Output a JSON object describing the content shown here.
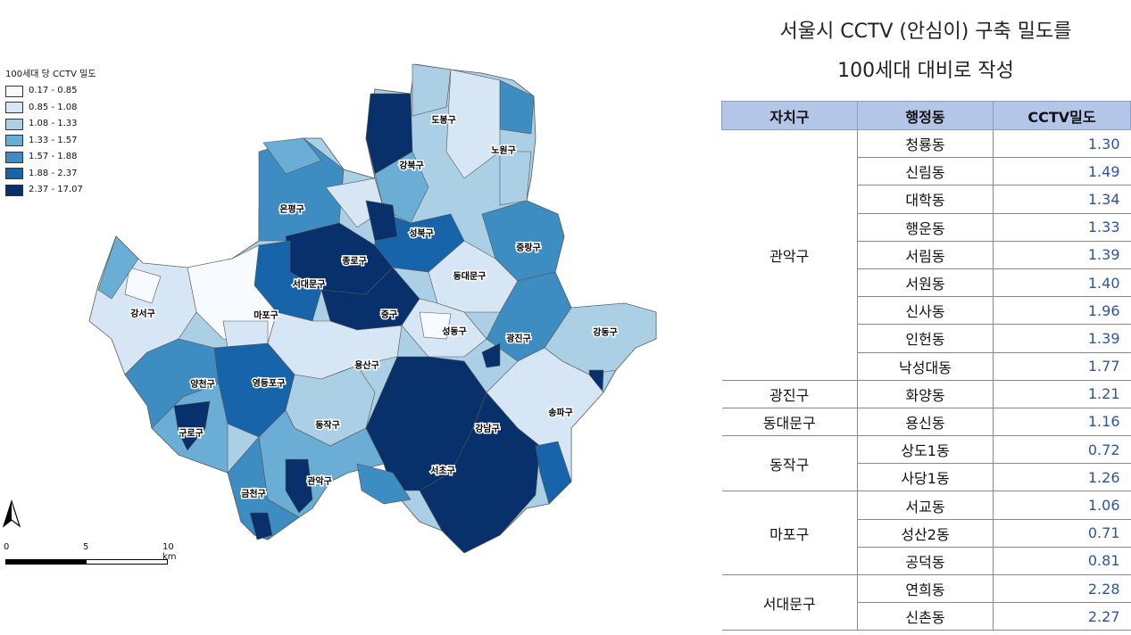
{
  "title": {
    "line1": "서울시 CCTV (안심이) 구축 밀도를",
    "line2": "100세대 대비로 작성"
  },
  "legend": {
    "title": "100세대 당 CCTV 밀도",
    "items": [
      {
        "label": "0.17 - 0.85",
        "color": "#f7fbff"
      },
      {
        "label": "0.85 - 1.08",
        "color": "#d6e6f4"
      },
      {
        "label": "1.08 - 1.33",
        "color": "#abcfe5"
      },
      {
        "label": "1.33 - 1.57",
        "color": "#6aaed6"
      },
      {
        "label": "1.57 - 1.88",
        "color": "#3d8dc3"
      },
      {
        "label": "1.88 - 2.37",
        "color": "#1764ab"
      },
      {
        "label": "2.37 - 17.07",
        "color": "#08306b"
      }
    ]
  },
  "map": {
    "district_labels": [
      "도봉구",
      "노원구",
      "강북구",
      "은평구",
      "성북구",
      "중랑구",
      "종로구",
      "서대문구",
      "동대문구",
      "강서구",
      "마포구",
      "중구",
      "성동구",
      "광진구",
      "강동구",
      "용산구",
      "양천구",
      "영등포구",
      "송파구",
      "동작구",
      "구로구",
      "강남구",
      "서초구",
      "관악구",
      "금천구"
    ]
  },
  "scale": {
    "t0": "0",
    "t1": "5",
    "t2": "10 km"
  },
  "table": {
    "headers": [
      "자치구",
      "행정동",
      "CCTV밀도"
    ],
    "groups": [
      {
        "gu": "관악구",
        "rows": [
          {
            "dong": "청룡동",
            "value": "1.30"
          },
          {
            "dong": "신림동",
            "value": "1.49"
          },
          {
            "dong": "대학동",
            "value": "1.34"
          },
          {
            "dong": "행운동",
            "value": "1.33"
          },
          {
            "dong": "서림동",
            "value": "1.39"
          },
          {
            "dong": "서원동",
            "value": "1.40"
          },
          {
            "dong": "신사동",
            "value": "1.96"
          },
          {
            "dong": "인헌동",
            "value": "1.39"
          },
          {
            "dong": "낙성대동",
            "value": "1.77"
          }
        ]
      },
      {
        "gu": "광진구",
        "rows": [
          {
            "dong": "화양동",
            "value": "1.21"
          }
        ]
      },
      {
        "gu": "동대문구",
        "rows": [
          {
            "dong": "용신동",
            "value": "1.16"
          }
        ]
      },
      {
        "gu": "동작구",
        "rows": [
          {
            "dong": "상도1동",
            "value": "0.72"
          },
          {
            "dong": "사당1동",
            "value": "1.26"
          }
        ]
      },
      {
        "gu": "마포구",
        "rows": [
          {
            "dong": "서교동",
            "value": "1.06"
          },
          {
            "dong": "성산2동",
            "value": "0.71"
          },
          {
            "dong": "공덕동",
            "value": "0.81"
          }
        ]
      },
      {
        "gu": "서대문구",
        "rows": [
          {
            "dong": "연희동",
            "value": "2.28"
          },
          {
            "dong": "신촌동",
            "value": "2.27"
          }
        ]
      }
    ]
  }
}
